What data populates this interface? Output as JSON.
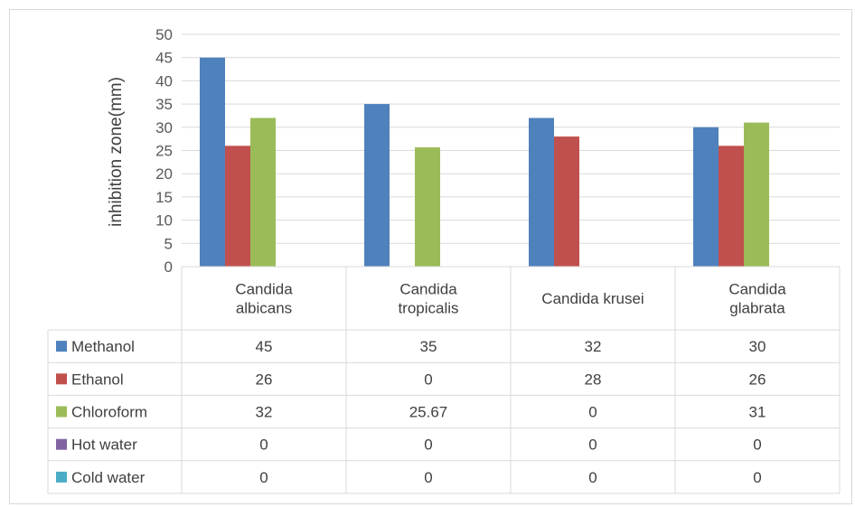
{
  "chart_data": {
    "type": "bar",
    "ylabel": "inhibition zone(mm)",
    "xlabel": "",
    "ylim": [
      0,
      50
    ],
    "yticks": [
      0,
      5,
      10,
      15,
      20,
      25,
      30,
      35,
      40,
      45,
      50
    ],
    "grid": true,
    "legend": "data-table",
    "categories": [
      [
        "Candida",
        "albicans"
      ],
      [
        "Candida",
        "tropicalis"
      ],
      [
        "Candida krusei"
      ],
      [
        "Candida",
        "glabrata"
      ]
    ],
    "series": [
      {
        "name": "Methanol",
        "color": "#4f81bd",
        "values": [
          45,
          35,
          32,
          30
        ],
        "labels": [
          "45",
          "35",
          "32",
          "30"
        ]
      },
      {
        "name": "Ethanol",
        "color": "#c0504d",
        "values": [
          26,
          0,
          28,
          26
        ],
        "labels": [
          "26",
          "0",
          "28",
          "26"
        ]
      },
      {
        "name": "Chloroform",
        "color": "#9bbb59",
        "values": [
          32,
          25.67,
          0,
          31
        ],
        "labels": [
          "32",
          "25.67",
          "0",
          "31"
        ]
      },
      {
        "name": "Hot water",
        "color": "#8064a2",
        "values": [
          0,
          0,
          0,
          0
        ],
        "labels": [
          "0",
          "0",
          "0",
          "0"
        ]
      },
      {
        "name": "Cold water",
        "color": "#4bacc6",
        "values": [
          0,
          0,
          0,
          0
        ],
        "labels": [
          "0",
          "0",
          "0",
          "0"
        ]
      }
    ]
  }
}
